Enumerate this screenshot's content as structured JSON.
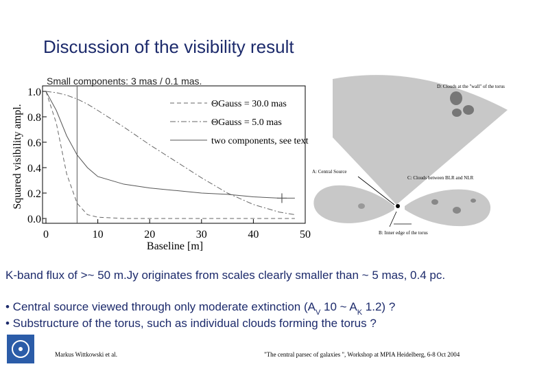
{
  "title": "Discussion of the visibility result",
  "subtitle": "Small components: 3 mas / 0.1 mas.",
  "chart_data": {
    "type": "line",
    "y_label": "Squared visibility ampl.",
    "x_label": "Baseline [m]",
    "x": [
      0,
      2,
      4,
      6,
      8,
      10,
      15,
      20,
      25,
      30,
      35,
      40,
      45,
      48
    ],
    "series": [
      {
        "name": "ΘGauss = 30.0 mas",
        "color": "#666666",
        "dash": "6,4",
        "values": [
          1,
          0.75,
          0.35,
          0.12,
          0.03,
          0.01,
          0,
          0,
          0,
          0,
          0,
          0,
          0,
          0
        ]
      },
      {
        "name": "ΘGauss = 5.0 mas",
        "color": "#666666",
        "dash": "8,3,2,3",
        "values": [
          1,
          0.99,
          0.97,
          0.94,
          0.9,
          0.85,
          0.72,
          0.58,
          0.45,
          0.32,
          0.2,
          0.11,
          0.05,
          0.03
        ]
      },
      {
        "name": "two components, see text",
        "color": "#555555",
        "dash": "none",
        "values": [
          1,
          0.85,
          0.65,
          0.5,
          0.4,
          0.33,
          0.27,
          0.24,
          0.22,
          0.2,
          0.19,
          0.17,
          0.16,
          0.16
        ]
      }
    ],
    "vline": 6,
    "marker": {
      "x": 45.5,
      "y": 0.16
    },
    "xlim": [
      0,
      50
    ],
    "xticks": [
      0,
      10,
      20,
      30,
      40,
      50
    ],
    "ylim": [
      0,
      1
    ],
    "yticks": [
      {
        "value": 0,
        "label": "0.0"
      },
      0.2,
      0.4,
      0.6,
      0.8,
      {
        "value": 1,
        "label": "1.0"
      }
    ]
  },
  "diagram": {
    "labels": [
      "D: Clouds at the \"wall\" of the torus",
      "A: Central Source",
      "C: Clouds between BLR and NLR",
      "B: Inner edge of the torus"
    ]
  },
  "statement": "K-band flux of >~ 50 m.Jy originates from scales clearly smaller than ~ 5 mas, 0.4 pc.",
  "bullets": [
    [
      "• Central source viewed through only moderate extinction (A",
      "V",
      " 10 ~ A",
      "K",
      " 1.2) ?"
    ],
    [
      "• Substructure of the torus, such as individual clouds forming the torus ?"
    ]
  ],
  "footer": {
    "author": "Markus Wittkowski et al.",
    "event": "\"The central parsec of galaxies \", Workshop at MPIA Heidelberg, 6-8 Oct 2004"
  }
}
